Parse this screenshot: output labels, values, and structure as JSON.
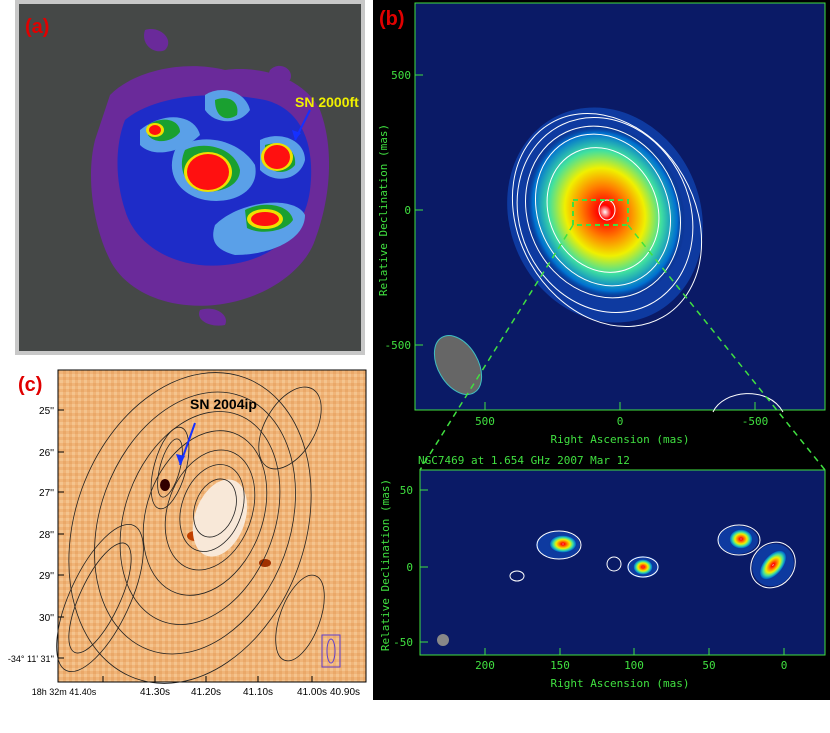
{
  "panel_a": {
    "label": "(a)",
    "sn_label": "SN 2000ft"
  },
  "panel_b": {
    "label": "(b)",
    "top_plot": {
      "ylabel": "Relative Declination  (mas)",
      "xlabel": "Right Ascension  (mas)",
      "yticks": [
        "500",
        "0",
        "-500"
      ],
      "xticks": [
        "500",
        "0",
        "-500"
      ]
    },
    "bottom_plot": {
      "title": "NGC7469 at 1.654 GHz 2007 Mar 12",
      "ylabel": "Relative Declination  (mas)",
      "xlabel": "Right Ascension  (mas)",
      "yticks": [
        "50",
        "0",
        "-50"
      ],
      "xticks": [
        "200",
        "150",
        "100",
        "50",
        "0"
      ]
    }
  },
  "panel_c": {
    "label": "(c)",
    "sn_label": "SN 2004ip",
    "yticks": [
      "25''",
      "26''",
      "27''",
      "28''",
      "29''",
      "30''",
      "-34° 11' 31''"
    ],
    "xticks": [
      "18h 32m 41.40s",
      "41.30s",
      "41.20s",
      "41.10s",
      "41.00s",
      "40.90s"
    ]
  },
  "colors": {
    "panel_a_bg": "#454847",
    "vlbi_bg": "#0a1a66",
    "label_red": "#e00000",
    "axis_green": "#40e040"
  }
}
